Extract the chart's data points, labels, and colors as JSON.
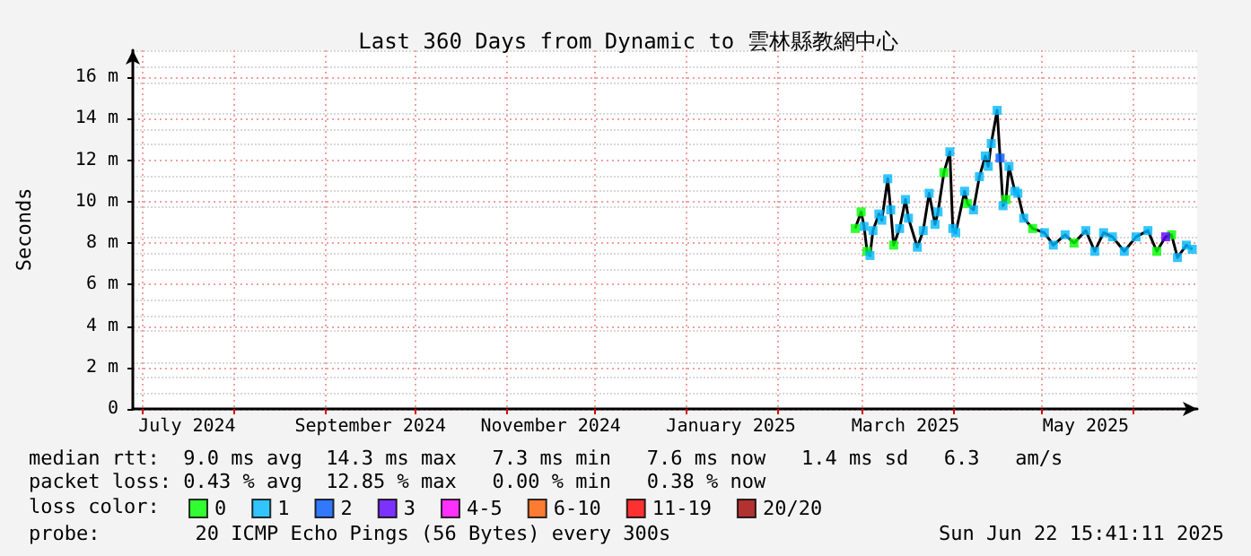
{
  "chart_data": {
    "type": "line",
    "title": "Last 360 Days from Dynamic to 雲林縣教網中心",
    "ylabel": "Seconds",
    "legend_title": "loss color:",
    "annotations": [
      "median rtt:  9.0 ms avg  14.3 ms max   7.3 ms min   7.6 ms now   1.4 ms sd   6.3   am/s",
      "packet loss: 0.43 % avg  12.85 % max   0.00 % min   0.38 % now",
      "probe:        20 ICMP Echo Pings (56 Bytes) every 300s",
      "Sun Jun 22 15:41:11 2025"
    ],
    "x": [
      "2025-02-27",
      "2025-03-01",
      "2025-03-02",
      "2025-03-03",
      "2025-03-04",
      "2025-03-05",
      "2025-03-07",
      "2025-03-08",
      "2025-03-10",
      "2025-03-11",
      "2025-03-12",
      "2025-03-14",
      "2025-03-16",
      "2025-03-17",
      "2025-03-20",
      "2025-03-22",
      "2025-03-24",
      "2025-03-26",
      "2025-03-27",
      "2025-03-29",
      "2025-03-31",
      "2025-04-01",
      "2025-04-02",
      "2025-04-05",
      "2025-04-06",
      "2025-04-08",
      "2025-04-10",
      "2025-04-12",
      "2025-04-13",
      "2025-04-14",
      "2025-04-16",
      "2025-04-17",
      "2025-04-18",
      "2025-04-19",
      "2025-04-20",
      "2025-04-22",
      "2025-04-23",
      "2025-04-25",
      "2025-04-28",
      "2025-05-02",
      "2025-05-05",
      "2025-05-09",
      "2025-05-12",
      "2025-05-16",
      "2025-05-19",
      "2025-05-22",
      "2025-05-25",
      "2025-05-29",
      "2025-06-02",
      "2025-06-06",
      "2025-06-09",
      "2025-06-12",
      "2025-06-14",
      "2025-06-16",
      "2025-06-19",
      "2025-06-21"
    ],
    "series": [
      {
        "color": "#000000",
        "marker": "none",
        "values": [
          8.7,
          9.5,
          8.8,
          7.6,
          7.4,
          8.6,
          9.4,
          9.1,
          11.1,
          9.6,
          7.9,
          8.7,
          10.1,
          9.2,
          7.8,
          8.6,
          10.4,
          8.9,
          9.5,
          11.4,
          12.4,
          8.7,
          8.5,
          10.5,
          9.9,
          9.6,
          11.2,
          12.2,
          11.7,
          12.8,
          14.4,
          12.1,
          9.8,
          10.1,
          11.7,
          10.5,
          10.4,
          9.2,
          8.7,
          8.5,
          7.9,
          8.4,
          8.0,
          8.6,
          7.6,
          8.5,
          8.3,
          7.6,
          8.3,
          8.6,
          7.6,
          8.3,
          8.4,
          7.3,
          7.9,
          7.7
        ]
      },
      {
        "type": "scatter",
        "marker": "square",
        "name": "0",
        "color": "#00ff00",
        "values": [
          8.7,
          9.5,
          null,
          7.6,
          null,
          null,
          null,
          null,
          null,
          null,
          7.9,
          null,
          null,
          null,
          null,
          null,
          null,
          null,
          null,
          11.4,
          null,
          null,
          null,
          null,
          9.9,
          null,
          null,
          null,
          null,
          null,
          null,
          null,
          null,
          10.1,
          null,
          null,
          null,
          null,
          8.7,
          null,
          null,
          null,
          8.0,
          null,
          null,
          null,
          null,
          null,
          null,
          null,
          7.6,
          null,
          8.4,
          null,
          null,
          null
        ]
      },
      {
        "type": "scatter",
        "marker": "square",
        "name": "1",
        "color": "#00b8ff",
        "values": [
          null,
          null,
          8.8,
          null,
          7.4,
          8.6,
          9.4,
          9.1,
          11.1,
          9.6,
          null,
          8.7,
          10.1,
          9.2,
          7.8,
          8.6,
          10.4,
          8.9,
          9.5,
          null,
          12.4,
          8.7,
          8.5,
          10.5,
          null,
          9.6,
          11.2,
          12.2,
          11.7,
          12.8,
          14.4,
          null,
          9.8,
          null,
          11.7,
          10.5,
          10.4,
          9.2,
          null,
          8.5,
          7.9,
          8.4,
          null,
          8.6,
          7.6,
          8.5,
          8.3,
          7.6,
          8.3,
          8.6,
          null,
          null,
          null,
          7.3,
          7.9,
          7.7
        ]
      },
      {
        "type": "scatter",
        "marker": "square",
        "name": "2",
        "color": "#0059ff",
        "values": [
          null,
          null,
          null,
          null,
          null,
          null,
          null,
          null,
          null,
          null,
          null,
          null,
          null,
          null,
          null,
          null,
          null,
          null,
          null,
          null,
          null,
          null,
          null,
          null,
          null,
          null,
          null,
          null,
          null,
          null,
          null,
          12.1,
          null,
          null,
          null,
          null,
          null,
          null,
          null,
          null,
          null,
          null,
          null,
          null,
          null,
          null,
          null,
          null,
          null,
          null,
          null,
          null,
          null,
          null,
          null,
          null
        ]
      },
      {
        "type": "scatter",
        "marker": "square",
        "name": "3",
        "color": "#5e00ff",
        "values": [
          null,
          null,
          null,
          null,
          null,
          null,
          null,
          null,
          null,
          null,
          null,
          null,
          null,
          null,
          null,
          null,
          null,
          null,
          null,
          null,
          null,
          null,
          null,
          null,
          null,
          null,
          null,
          null,
          null,
          null,
          null,
          null,
          null,
          null,
          null,
          null,
          null,
          null,
          null,
          null,
          null,
          null,
          null,
          null,
          null,
          null,
          null,
          null,
          null,
          null,
          null,
          8.3,
          null,
          null,
          null,
          null
        ]
      },
      {
        "type": "scatter",
        "marker": "square",
        "name": "4-5",
        "color": "#ff00ff",
        "values": [
          null,
          null,
          null,
          null,
          null,
          null,
          null,
          null,
          null,
          null,
          null,
          null,
          null,
          null,
          null,
          null,
          null,
          null,
          null,
          null,
          null,
          null,
          null,
          null,
          null,
          null,
          null,
          null,
          null,
          null,
          null,
          null,
          null,
          null,
          null,
          null,
          null,
          null,
          null,
          null,
          null,
          null,
          null,
          null,
          null,
          null,
          null,
          null,
          null,
          null,
          null,
          null,
          null,
          null,
          null,
          null
        ]
      },
      {
        "type": "scatter",
        "marker": "square",
        "name": "6-10",
        "color": "#ff5e00",
        "values": [
          null,
          null,
          null,
          null,
          null,
          null,
          null,
          null,
          null,
          null,
          null,
          null,
          null,
          null,
          null,
          null,
          null,
          null,
          null,
          null,
          null,
          null,
          null,
          null,
          null,
          null,
          null,
          null,
          null,
          null,
          null,
          null,
          null,
          null,
          null,
          null,
          null,
          null,
          null,
          null,
          null,
          null,
          null,
          null,
          null,
          null,
          null,
          null,
          null,
          null,
          null,
          null,
          null,
          null,
          null,
          null
        ]
      },
      {
        "type": "scatter",
        "marker": "square",
        "name": "11-19",
        "color": "#ff0000",
        "values": [
          null,
          null,
          null,
          null,
          null,
          null,
          null,
          null,
          null,
          null,
          null,
          null,
          null,
          null,
          null,
          null,
          null,
          null,
          null,
          null,
          null,
          null,
          null,
          null,
          null,
          null,
          null,
          null,
          null,
          null,
          null,
          null,
          null,
          null,
          null,
          null,
          null,
          null,
          null,
          null,
          null,
          null,
          null,
          null,
          null,
          null,
          null,
          null,
          null,
          null,
          null,
          null,
          null,
          null,
          null,
          null
        ]
      },
      {
        "type": "scatter",
        "marker": "square",
        "name": "20/20",
        "color": "#a10000",
        "values": [
          null,
          null,
          null,
          null,
          null,
          null,
          null,
          null,
          null,
          null,
          null,
          null,
          null,
          null,
          null,
          null,
          null,
          null,
          null,
          null,
          null,
          null,
          null,
          null,
          null,
          null,
          null,
          null,
          null,
          null,
          null,
          null,
          null,
          null,
          null,
          null,
          null,
          null,
          null,
          null,
          null,
          null,
          null,
          null,
          null,
          null,
          null,
          null,
          null,
          null,
          null,
          null,
          null,
          null,
          null,
          null
        ]
      }
    ],
    "xlim": [
      "2024-06-27T15:41",
      "2025-06-22T15:41"
    ],
    "xticks": [
      {
        "value": "2024-07-01",
        "label": null
      },
      {
        "value": "2024-07-16",
        "label": "July 2024"
      },
      {
        "value": "2024-08-01",
        "label": null
      },
      {
        "value": "2024-09-01",
        "label": null
      },
      {
        "value": "2024-09-16",
        "label": "September 2024"
      },
      {
        "value": "2024-10-01",
        "label": null
      },
      {
        "value": "2024-11-01",
        "label": null
      },
      {
        "value": "2024-11-16",
        "label": "November 2024"
      },
      {
        "value": "2024-12-01",
        "label": null
      },
      {
        "value": "2025-01-01",
        "label": null
      },
      {
        "value": "2025-01-16",
        "label": "January 2025"
      },
      {
        "value": "2025-02-01",
        "label": null
      },
      {
        "value": "2025-03-01",
        "label": null
      },
      {
        "value": "2025-03-16",
        "label": "March 2025"
      },
      {
        "value": "2025-04-01",
        "label": null
      },
      {
        "value": "2025-05-01",
        "label": null
      },
      {
        "value": "2025-05-16",
        "label": "May 2025"
      },
      {
        "value": "2025-06-01",
        "label": null
      }
    ],
    "ylim": [
      0,
      17.3
    ],
    "yticks": [
      {
        "value": 0,
        "label": "0"
      },
      {
        "value": 2,
        "label": "2 m"
      },
      {
        "value": 4,
        "label": "4 m"
      },
      {
        "value": 6,
        "label": "6 m"
      },
      {
        "value": 8,
        "label": "8 m"
      },
      {
        "value": 10,
        "label": "10 m"
      },
      {
        "value": 12,
        "label": "12 m"
      },
      {
        "value": 14,
        "label": "14 m"
      },
      {
        "value": 16,
        "label": "16 m"
      }
    ],
    "grid": true,
    "legend": "bottom"
  }
}
